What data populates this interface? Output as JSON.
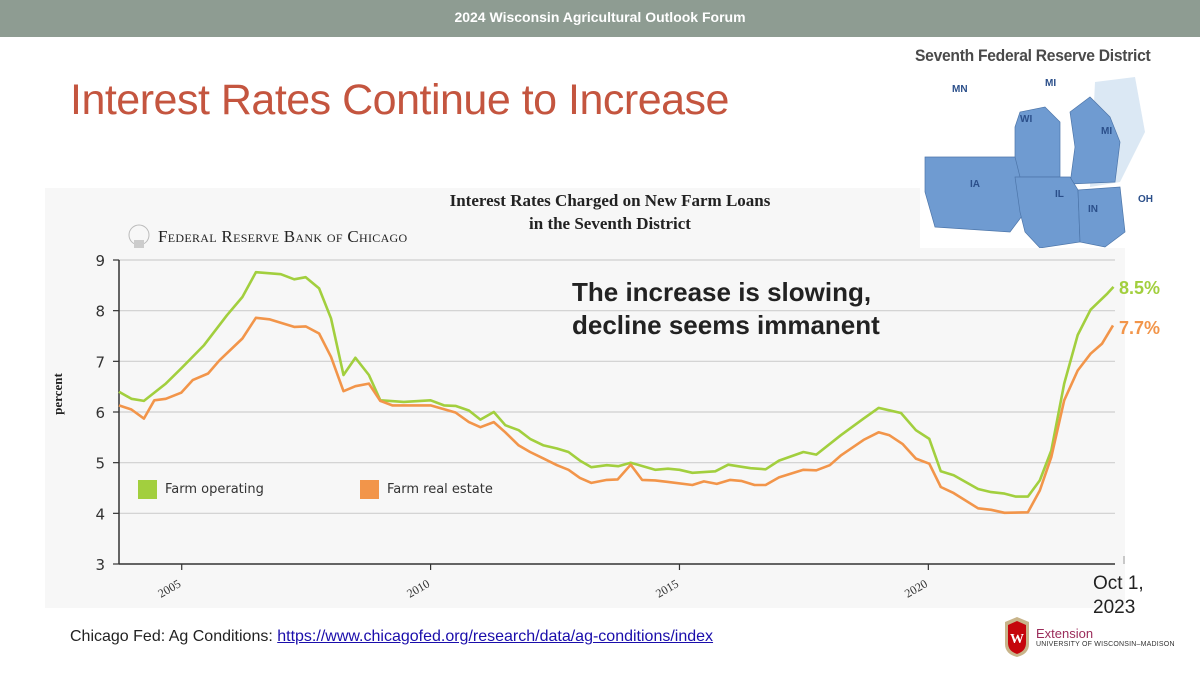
{
  "banner": {
    "title": "2024 Wisconsin Agricultural Outlook Forum"
  },
  "slide": {
    "title": "Interest Rates Continue to Increase",
    "title_color": "#c4553f"
  },
  "chart_data": {
    "type": "line",
    "title": "Interest Rates Charged on New Farm Loans in the Seventh District",
    "title_lines": [
      "Interest Rates Charged on New Farm Loans",
      "in the Seventh District"
    ],
    "source_logo": "Federal Reserve Bank of Chicago",
    "xlabel": "",
    "ylabel": "percent",
    "xlim": [
      2003.74,
      2023.75
    ],
    "ylim": [
      3,
      9
    ],
    "xticks": [
      {
        "value": 2005,
        "label": "2005"
      },
      {
        "value": 2010,
        "label": "2010"
      },
      {
        "value": 2015,
        "label": "2015"
      },
      {
        "value": 2020,
        "label": "2020"
      }
    ],
    "yticks": [
      3,
      4,
      5,
      6,
      7,
      8,
      9
    ],
    "grid": "horizontal",
    "legend_placement": "bottom-left",
    "series": [
      {
        "name": "Farm operating",
        "color": "#a2cf3e",
        "points": [
          [
            2003.74,
            6.4
          ],
          [
            2003.99,
            6.26
          ],
          [
            2004.24,
            6.22
          ],
          [
            2004.68,
            6.56
          ],
          [
            2004.99,
            6.86
          ],
          [
            2005.45,
            7.32
          ],
          [
            2005.91,
            7.91
          ],
          [
            2006.22,
            8.27
          ],
          [
            2006.49,
            8.76
          ],
          [
            2006.99,
            8.72
          ],
          [
            2007.26,
            8.62
          ],
          [
            2007.49,
            8.66
          ],
          [
            2007.76,
            8.44
          ],
          [
            2008.0,
            7.85
          ],
          [
            2008.25,
            6.73
          ],
          [
            2008.49,
            7.07
          ],
          [
            2008.76,
            6.73
          ],
          [
            2008.99,
            6.23
          ],
          [
            2009.46,
            6.2
          ],
          [
            2010.0,
            6.23
          ],
          [
            2010.27,
            6.13
          ],
          [
            2010.5,
            6.12
          ],
          [
            2010.77,
            6.03
          ],
          [
            2011.0,
            5.85
          ],
          [
            2011.27,
            6.0
          ],
          [
            2011.5,
            5.74
          ],
          [
            2011.77,
            5.64
          ],
          [
            2012.0,
            5.47
          ],
          [
            2012.27,
            5.34
          ],
          [
            2012.54,
            5.28
          ],
          [
            2012.77,
            5.21
          ],
          [
            2013.0,
            5.04
          ],
          [
            2013.23,
            4.91
          ],
          [
            2013.54,
            4.95
          ],
          [
            2013.77,
            4.93
          ],
          [
            2014.02,
            5.0
          ],
          [
            2014.51,
            4.86
          ],
          [
            2014.77,
            4.88
          ],
          [
            2015.0,
            4.86
          ],
          [
            2015.26,
            4.8
          ],
          [
            2015.72,
            4.83
          ],
          [
            2015.98,
            4.96
          ],
          [
            2016.43,
            4.89
          ],
          [
            2016.73,
            4.87
          ],
          [
            2017.0,
            5.04
          ],
          [
            2017.49,
            5.21
          ],
          [
            2017.75,
            5.16
          ],
          [
            2018.24,
            5.54
          ],
          [
            2018.7,
            5.87
          ],
          [
            2019.0,
            6.08
          ],
          [
            2019.45,
            5.98
          ],
          [
            2019.75,
            5.64
          ],
          [
            2020.02,
            5.47
          ],
          [
            2020.25,
            4.83
          ],
          [
            2020.51,
            4.75
          ],
          [
            2021.0,
            4.48
          ],
          [
            2021.26,
            4.42
          ],
          [
            2021.53,
            4.39
          ],
          [
            2021.76,
            4.33
          ],
          [
            2022.0,
            4.33
          ],
          [
            2022.24,
            4.65
          ],
          [
            2022.47,
            5.24
          ],
          [
            2022.73,
            6.56
          ],
          [
            2023.0,
            7.52
          ],
          [
            2023.26,
            8.02
          ],
          [
            2023.6,
            8.34
          ],
          [
            2023.72,
            8.47
          ]
        ]
      },
      {
        "name": "Farm real estate",
        "color": "#f2954a",
        "points": [
          [
            2003.74,
            6.13
          ],
          [
            2003.99,
            6.05
          ],
          [
            2004.24,
            5.87
          ],
          [
            2004.45,
            6.23
          ],
          [
            2004.68,
            6.26
          ],
          [
            2004.99,
            6.38
          ],
          [
            2005.22,
            6.63
          ],
          [
            2005.53,
            6.76
          ],
          [
            2005.76,
            7.02
          ],
          [
            2006.22,
            7.45
          ],
          [
            2006.49,
            7.86
          ],
          [
            2006.76,
            7.83
          ],
          [
            2007.26,
            7.68
          ],
          [
            2007.49,
            7.69
          ],
          [
            2007.76,
            7.55
          ],
          [
            2008.0,
            7.09
          ],
          [
            2008.25,
            6.41
          ],
          [
            2008.49,
            6.51
          ],
          [
            2008.76,
            6.56
          ],
          [
            2008.99,
            6.22
          ],
          [
            2009.23,
            6.13
          ],
          [
            2010.0,
            6.13
          ],
          [
            2010.5,
            5.99
          ],
          [
            2010.77,
            5.8
          ],
          [
            2011.0,
            5.7
          ],
          [
            2011.27,
            5.8
          ],
          [
            2011.5,
            5.6
          ],
          [
            2011.77,
            5.34
          ],
          [
            2012.0,
            5.21
          ],
          [
            2012.27,
            5.08
          ],
          [
            2012.54,
            4.95
          ],
          [
            2012.77,
            4.86
          ],
          [
            2013.0,
            4.7
          ],
          [
            2013.23,
            4.6
          ],
          [
            2013.54,
            4.66
          ],
          [
            2013.76,
            4.67
          ],
          [
            2014.02,
            4.96
          ],
          [
            2014.25,
            4.66
          ],
          [
            2014.51,
            4.65
          ],
          [
            2014.77,
            4.62
          ],
          [
            2015.26,
            4.56
          ],
          [
            2015.49,
            4.63
          ],
          [
            2015.75,
            4.58
          ],
          [
            2016.02,
            4.66
          ],
          [
            2016.24,
            4.64
          ],
          [
            2016.51,
            4.56
          ],
          [
            2016.73,
            4.56
          ],
          [
            2017.0,
            4.71
          ],
          [
            2017.49,
            4.86
          ],
          [
            2017.75,
            4.85
          ],
          [
            2018.02,
            4.95
          ],
          [
            2018.24,
            5.14
          ],
          [
            2018.7,
            5.45
          ],
          [
            2019.0,
            5.6
          ],
          [
            2019.22,
            5.54
          ],
          [
            2019.48,
            5.37
          ],
          [
            2019.75,
            5.08
          ],
          [
            2020.02,
            4.98
          ],
          [
            2020.25,
            4.52
          ],
          [
            2020.51,
            4.4
          ],
          [
            2021.0,
            4.1
          ],
          [
            2021.26,
            4.07
          ],
          [
            2021.53,
            4.01
          ],
          [
            2022.0,
            4.02
          ],
          [
            2022.24,
            4.45
          ],
          [
            2022.47,
            5.11
          ],
          [
            2022.73,
            6.23
          ],
          [
            2023.0,
            6.82
          ],
          [
            2023.26,
            7.15
          ],
          [
            2023.49,
            7.35
          ],
          [
            2023.71,
            7.71
          ]
        ]
      }
    ],
    "annotations": {
      "note_lines": [
        "The increase is slowing,",
        "decline seems immanent"
      ],
      "end_label_operating": "8.5%",
      "end_label_real_estate": "7.7%",
      "date_lines": [
        "Oct 1,",
        "2023"
      ]
    }
  },
  "map": {
    "title": "Seventh Federal Reserve District",
    "states": [
      "MN",
      "MI",
      "WI",
      "MI",
      "IA",
      "IL",
      "IN",
      "OH"
    ],
    "fill_color": "#6f9bd1"
  },
  "source": {
    "prefix": "Chicago Fed: Ag Conditions: ",
    "link": "https://www.chicagofed.org/research/data/ag-conditions/index"
  },
  "logo": {
    "name": "Extension",
    "subtitle": "UNIVERSITY OF WISCONSIN–MADISON",
    "letter": "W"
  }
}
